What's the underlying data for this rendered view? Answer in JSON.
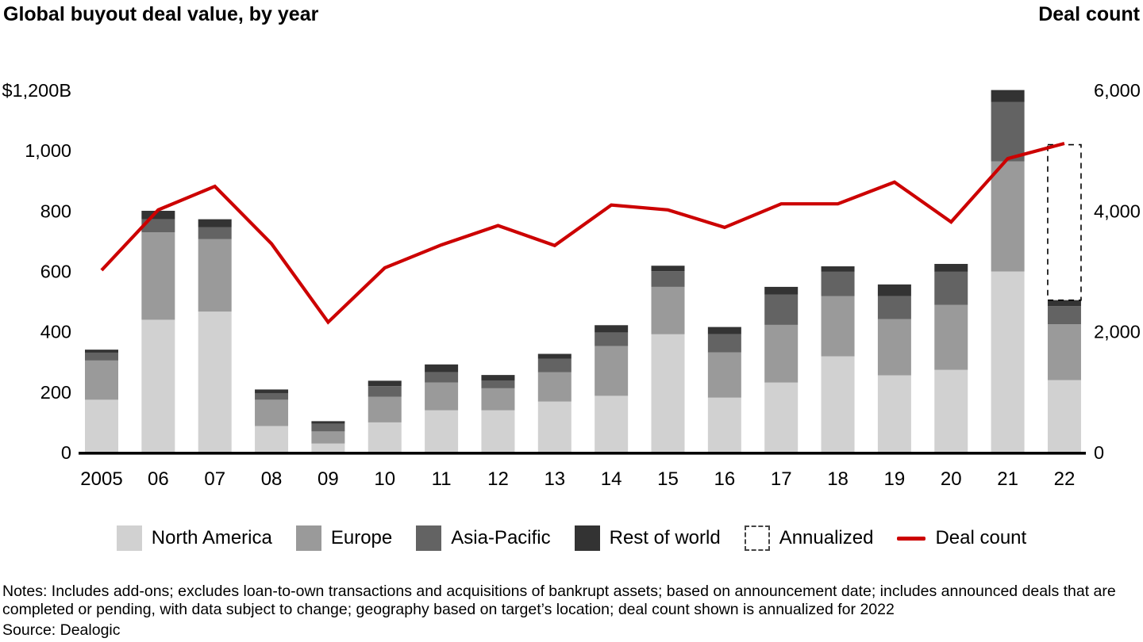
{
  "header": {
    "title": "Global buyout deal value, by year",
    "right_label": "Deal count"
  },
  "colors": {
    "north_america": "#d1d1d1",
    "europe": "#9a9a9a",
    "asia_pacific": "#636363",
    "rest_of_world": "#333333",
    "deal_count_line": "#cc0000",
    "axis": "#000000"
  },
  "chart_data": {
    "type": "stacked-bar+line",
    "title": "Global buyout deal value, by year",
    "bar_value_unit": "US$ billions",
    "categories": [
      "2005",
      "06",
      "07",
      "08",
      "09",
      "10",
      "11",
      "12",
      "13",
      "14",
      "15",
      "16",
      "17",
      "18",
      "19",
      "20",
      "21",
      "22"
    ],
    "series": [
      {
        "name": "North America",
        "key": "north_america",
        "values": [
          175,
          440,
          467,
          88,
          30,
          100,
          140,
          140,
          169,
          188,
          392,
          182,
          232,
          319,
          256,
          274,
          600,
          240
        ]
      },
      {
        "name": "Europe",
        "key": "europe",
        "values": [
          130,
          290,
          240,
          87,
          40,
          85,
          92,
          73,
          97,
          165,
          157,
          150,
          191,
          199,
          186,
          215,
          365,
          185
        ]
      },
      {
        "name": "Asia-Pacific",
        "key": "asia_pacific",
        "values": [
          26,
          43,
          40,
          22,
          26,
          35,
          34,
          26,
          45,
          45,
          52,
          60,
          100,
          81,
          76,
          110,
          196,
          60
        ]
      },
      {
        "name": "Rest of world",
        "key": "rest_of_world",
        "values": [
          10,
          28,
          26,
          12,
          8,
          18,
          26,
          18,
          16,
          24,
          18,
          24,
          26,
          18,
          39,
          26,
          40,
          20
        ]
      }
    ],
    "annualized": {
      "category": "22",
      "solid_total": 505,
      "annualized_total": 1020
    },
    "line_series": {
      "name": "Deal count",
      "axis": "right",
      "values": [
        3020,
        4020,
        4410,
        3460,
        2160,
        3060,
        3440,
        3760,
        3430,
        4100,
        4020,
        3730,
        4120,
        4120,
        4480,
        3820,
        4870,
        5120
      ]
    },
    "left_axis": {
      "tick_labels": [
        "$1,200B",
        "1,000",
        "800",
        "600",
        "400",
        "200",
        "0"
      ],
      "tick_values": [
        1200,
        1000,
        800,
        600,
        400,
        200,
        0
      ],
      "range": [
        0,
        1200
      ]
    },
    "right_axis": {
      "tick_labels": [
        "6,000",
        "4,000",
        "2,000",
        "0"
      ],
      "tick_values": [
        6000,
        4000,
        2000,
        0
      ],
      "range": [
        0,
        6000
      ],
      "title": "Deal count"
    },
    "grid": false,
    "legend_position": "bottom"
  },
  "legend": {
    "items": [
      {
        "label": "North America",
        "swatch": "north_america"
      },
      {
        "label": "Europe",
        "swatch": "europe"
      },
      {
        "label": "Asia-Pacific",
        "swatch": "asia_pacific"
      },
      {
        "label": "Rest of world",
        "swatch": "rest_of_world"
      },
      {
        "label": "Annualized",
        "swatch": "dashed-box"
      },
      {
        "label": "Deal count",
        "swatch": "red-line"
      }
    ]
  },
  "notes": "Notes: Includes add-ons; excludes loan-to-own transactions and acquisitions of bankrupt assets; based on announcement date; includes announced deals that are completed or pending, with data subject to change; geography based on target’s location; deal count shown is annualized for 2022",
  "source": "Source: Dealogic"
}
